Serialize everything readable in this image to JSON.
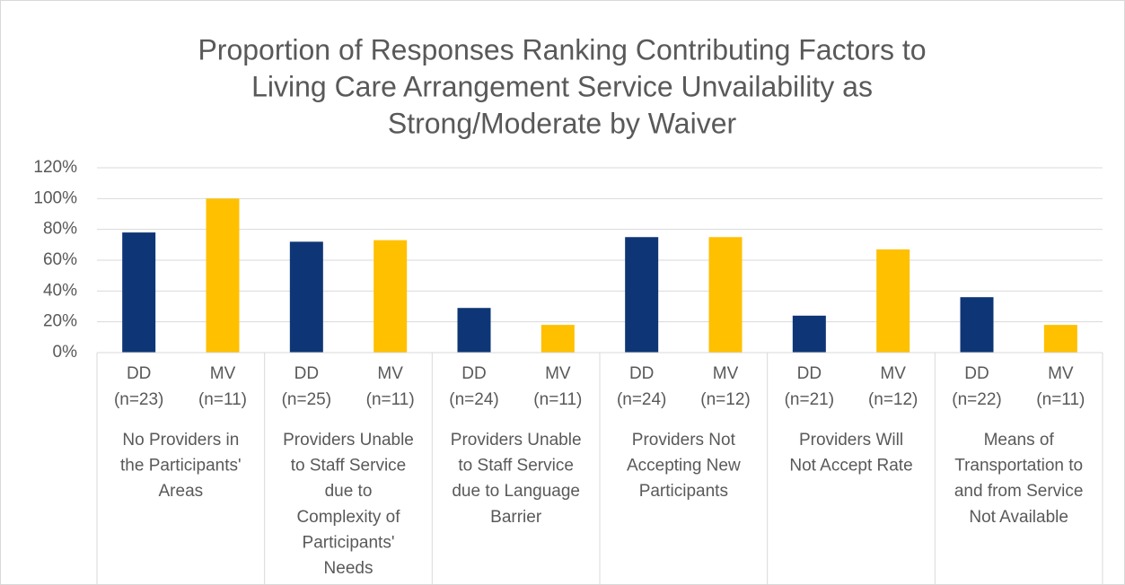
{
  "chart_data": {
    "type": "bar",
    "title": [
      "Proportion of Responses Ranking Contributing Factors to",
      "Living Care Arrangement Service Unvailability as",
      "Strong/Moderate by Waiver"
    ],
    "categories": [
      [
        "DD",
        "(n=23)"
      ],
      [
        "MV",
        "(n=11)"
      ],
      [
        "DD",
        "(n=25)"
      ],
      [
        "MV",
        "(n=11)"
      ],
      [
        "DD",
        "(n=24)"
      ],
      [
        "MV",
        "(n=11)"
      ],
      [
        "DD",
        "(n=24)"
      ],
      [
        "MV",
        "(n=12)"
      ],
      [
        "DD",
        "(n=21)"
      ],
      [
        "MV",
        "(n=12)"
      ],
      [
        "DD",
        "(n=22)"
      ],
      [
        "MV",
        "(n=11)"
      ]
    ],
    "groups": [
      [
        "No Providers in",
        "the Participants'",
        "Areas"
      ],
      [
        "Providers Unable",
        "to Staff Service",
        "due to",
        "Complexity of",
        "Participants'",
        "Needs"
      ],
      [
        "Providers Unable",
        "to Staff Service",
        "due to Language",
        "Barrier"
      ],
      [
        "Providers Not",
        "Accepting New",
        "Participants"
      ],
      [
        "Providers Will",
        "Not Accept Rate"
      ],
      [
        "Means of",
        "Transportation to",
        "and from Service",
        "Not Available"
      ]
    ],
    "values": [
      78,
      100,
      72,
      73,
      29,
      18,
      75,
      75,
      24,
      67,
      36,
      18
    ],
    "colors": [
      "#0e3676",
      "#ffc000",
      "#0e3676",
      "#ffc000",
      "#0e3676",
      "#ffc000",
      "#0e3676",
      "#ffc000",
      "#0e3676",
      "#ffc000",
      "#0e3676",
      "#ffc000"
    ],
    "ylim": [
      0,
      120
    ],
    "yticks": [
      {
        "value": 0,
        "label": "0%"
      },
      {
        "value": 20,
        "label": "20%"
      },
      {
        "value": 40,
        "label": "40%"
      },
      {
        "value": 60,
        "label": "60%"
      },
      {
        "value": 80,
        "label": "80%"
      },
      {
        "value": 100,
        "label": "100%"
      },
      {
        "value": 120,
        "label": "120%"
      }
    ],
    "grid": true
  }
}
